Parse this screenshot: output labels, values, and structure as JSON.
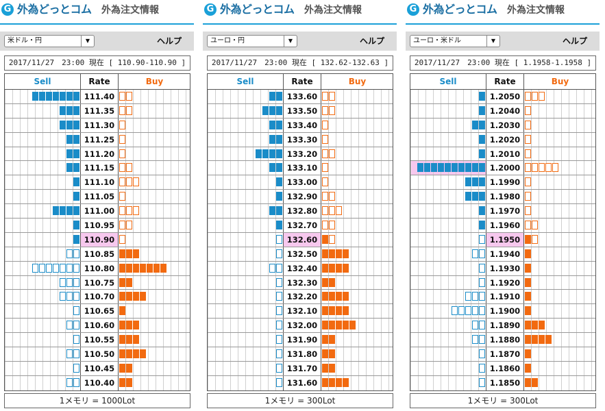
{
  "brand": {
    "name": "外為どっとコム",
    "sub": "外為注文情報",
    "logo_letter": "G"
  },
  "help_label": "ヘルプ",
  "headers": {
    "sell": "Sell",
    "rate": "Rate",
    "buy": "Buy"
  },
  "colors": {
    "sell": "#1a8cc8",
    "buy": "#f26a10",
    "highlight": "#f7c8ee"
  },
  "panels": [
    {
      "pair": "米ドル・円",
      "status": "2017/11/27　23:00 現在 [ 110.90-110.90 ]",
      "footer": "1メモリ = 1000Lot",
      "rows": [
        {
          "rate": "111.40",
          "sell": 7,
          "buy": 2,
          "sell_style": "solid",
          "buy_style": "out"
        },
        {
          "rate": "111.35",
          "sell": 3,
          "buy": 2,
          "sell_style": "solid",
          "buy_style": "out"
        },
        {
          "rate": "111.30",
          "sell": 3,
          "buy": 1,
          "sell_style": "solid",
          "buy_style": "out"
        },
        {
          "rate": "111.25",
          "sell": 2,
          "buy": 1,
          "sell_style": "solid",
          "buy_style": "out"
        },
        {
          "rate": "111.20",
          "sell": 2,
          "buy": 1,
          "sell_style": "solid",
          "buy_style": "out"
        },
        {
          "rate": "111.15",
          "sell": 2,
          "buy": 2,
          "sell_style": "solid",
          "buy_style": "out"
        },
        {
          "rate": "111.10",
          "sell": 1,
          "buy": 3,
          "sell_style": "solid",
          "buy_style": "out"
        },
        {
          "rate": "111.05",
          "sell": 1,
          "buy": 1,
          "sell_style": "solid",
          "buy_style": "out"
        },
        {
          "rate": "111.00",
          "sell": 4,
          "buy": 3,
          "sell_style": "solid",
          "buy_style": "out"
        },
        {
          "rate": "110.95",
          "sell": 1,
          "buy": 2,
          "sell_style": "solid",
          "buy_style": "out"
        },
        {
          "rate": "110.90",
          "sell": 1,
          "buy": 1,
          "sell_style": "solid",
          "buy_style": "out",
          "current": true
        },
        {
          "rate": "110.85",
          "sell": 2,
          "buy": 3,
          "sell_style": "out",
          "buy_style": "solid"
        },
        {
          "rate": "110.80",
          "sell": 7,
          "buy": 7,
          "sell_style": "out",
          "buy_style": "solid"
        },
        {
          "rate": "110.75",
          "sell": 3,
          "buy": 2,
          "sell_style": "out",
          "buy_style": "solid"
        },
        {
          "rate": "110.70",
          "sell": 3,
          "buy": 4,
          "sell_style": "out",
          "buy_style": "solid"
        },
        {
          "rate": "110.65",
          "sell": 1,
          "buy": 1,
          "sell_style": "out",
          "buy_style": "solid"
        },
        {
          "rate": "110.60",
          "sell": 2,
          "buy": 3,
          "sell_style": "out",
          "buy_style": "solid"
        },
        {
          "rate": "110.55",
          "sell": 1,
          "buy": 3,
          "sell_style": "out",
          "buy_style": "solid"
        },
        {
          "rate": "110.50",
          "sell": 2,
          "buy": 4,
          "sell_style": "out",
          "buy_style": "solid"
        },
        {
          "rate": "110.45",
          "sell": 1,
          "buy": 2,
          "sell_style": "out",
          "buy_style": "solid"
        },
        {
          "rate": "110.40",
          "sell": 2,
          "buy": 2,
          "sell_style": "out",
          "buy_style": "solid"
        }
      ]
    },
    {
      "pair": "ユーロ・円",
      "status": "2017/11/27　23:00 現在 [ 132.62-132.63 ]",
      "footer": "1メモリ = 300Lot",
      "rows": [
        {
          "rate": "133.60",
          "sell": 2,
          "buy": 2,
          "sell_style": "solid",
          "buy_style": "out"
        },
        {
          "rate": "133.50",
          "sell": 3,
          "buy": 2,
          "sell_style": "solid",
          "buy_style": "out"
        },
        {
          "rate": "133.40",
          "sell": 2,
          "buy": 1,
          "sell_style": "solid",
          "buy_style": "out"
        },
        {
          "rate": "133.30",
          "sell": 2,
          "buy": 1,
          "sell_style": "solid",
          "buy_style": "out"
        },
        {
          "rate": "133.20",
          "sell": 4,
          "buy": 2,
          "sell_style": "solid",
          "buy_style": "out"
        },
        {
          "rate": "133.10",
          "sell": 2,
          "buy": 1,
          "sell_style": "solid",
          "buy_style": "out"
        },
        {
          "rate": "133.00",
          "sell": 1,
          "buy": 1,
          "sell_style": "solid",
          "buy_style": "out"
        },
        {
          "rate": "132.90",
          "sell": 1,
          "buy": 2,
          "sell_style": "solid",
          "buy_style": "out"
        },
        {
          "rate": "132.80",
          "sell": 2,
          "buy": 3,
          "sell_style": "solid",
          "buy_style": "out"
        },
        {
          "rate": "132.70",
          "sell": 1,
          "buy": 2,
          "sell_style": "solid",
          "buy_style": "out"
        },
        {
          "rate": "132.60",
          "sell": 1,
          "buy": 2,
          "sell_style": "out",
          "buy_style": "mixed",
          "current": true
        },
        {
          "rate": "132.50",
          "sell": 1,
          "buy": 4,
          "sell_style": "out",
          "buy_style": "solid"
        },
        {
          "rate": "132.40",
          "sell": 2,
          "buy": 4,
          "sell_style": "out",
          "buy_style": "solid"
        },
        {
          "rate": "132.30",
          "sell": 1,
          "buy": 2,
          "sell_style": "out",
          "buy_style": "solid"
        },
        {
          "rate": "132.20",
          "sell": 1,
          "buy": 4,
          "sell_style": "out",
          "buy_style": "solid"
        },
        {
          "rate": "132.10",
          "sell": 1,
          "buy": 4,
          "sell_style": "out",
          "buy_style": "solid"
        },
        {
          "rate": "132.00",
          "sell": 1,
          "buy": 5,
          "sell_style": "out",
          "buy_style": "solid"
        },
        {
          "rate": "131.90",
          "sell": 1,
          "buy": 2,
          "sell_style": "out",
          "buy_style": "solid"
        },
        {
          "rate": "131.80",
          "sell": 1,
          "buy": 2,
          "sell_style": "out",
          "buy_style": "solid"
        },
        {
          "rate": "131.70",
          "sell": 1,
          "buy": 2,
          "sell_style": "out",
          "buy_style": "solid"
        },
        {
          "rate": "131.60",
          "sell": 1,
          "buy": 4,
          "sell_style": "out",
          "buy_style": "solid"
        }
      ]
    },
    {
      "pair": "ユーロ・米ドル",
      "status": "2017/11/27　23:00 現在 [ 1.1958-1.1958 ]",
      "footer": "1メモリ = 300Lot",
      "rows": [
        {
          "rate": "1.2050",
          "sell": 1,
          "buy": 3,
          "sell_style": "solid",
          "buy_style": "out"
        },
        {
          "rate": "1.2040",
          "sell": 1,
          "buy": 1,
          "sell_style": "solid",
          "buy_style": "out"
        },
        {
          "rate": "1.2030",
          "sell": 2,
          "buy": 1,
          "sell_style": "solid",
          "buy_style": "out"
        },
        {
          "rate": "1.2020",
          "sell": 1,
          "buy": 1,
          "sell_style": "solid",
          "buy_style": "out"
        },
        {
          "rate": "1.2010",
          "sell": 1,
          "buy": 1,
          "sell_style": "solid",
          "buy_style": "out"
        },
        {
          "rate": "1.2000",
          "sell": 10,
          "buy": 5,
          "sell_style": "solid",
          "buy_style": "out",
          "highlight_sell": true
        },
        {
          "rate": "1.1990",
          "sell": 3,
          "buy": 1,
          "sell_style": "solid",
          "buy_style": "out"
        },
        {
          "rate": "1.1980",
          "sell": 3,
          "buy": 1,
          "sell_style": "solid",
          "buy_style": "out"
        },
        {
          "rate": "1.1970",
          "sell": 1,
          "buy": 1,
          "sell_style": "solid",
          "buy_style": "out"
        },
        {
          "rate": "1.1960",
          "sell": 1,
          "buy": 2,
          "sell_style": "solid",
          "buy_style": "out"
        },
        {
          "rate": "1.1950",
          "sell": 1,
          "buy": 2,
          "sell_style": "out",
          "buy_style": "mixed",
          "current": true
        },
        {
          "rate": "1.1940",
          "sell": 2,
          "buy": 1,
          "sell_style": "out",
          "buy_style": "solid"
        },
        {
          "rate": "1.1930",
          "sell": 1,
          "buy": 1,
          "sell_style": "out",
          "buy_style": "solid"
        },
        {
          "rate": "1.1920",
          "sell": 1,
          "buy": 1,
          "sell_style": "out",
          "buy_style": "solid"
        },
        {
          "rate": "1.1910",
          "sell": 3,
          "buy": 1,
          "sell_style": "out",
          "buy_style": "solid"
        },
        {
          "rate": "1.1900",
          "sell": 5,
          "buy": 1,
          "sell_style": "out",
          "buy_style": "solid"
        },
        {
          "rate": "1.1890",
          "sell": 2,
          "buy": 3,
          "sell_style": "out",
          "buy_style": "solid"
        },
        {
          "rate": "1.1880",
          "sell": 2,
          "buy": 4,
          "sell_style": "out",
          "buy_style": "solid"
        },
        {
          "rate": "1.1870",
          "sell": 1,
          "buy": 1,
          "sell_style": "out",
          "buy_style": "solid"
        },
        {
          "rate": "1.1860",
          "sell": 1,
          "buy": 1,
          "sell_style": "out",
          "buy_style": "solid"
        },
        {
          "rate": "1.1850",
          "sell": 1,
          "buy": 2,
          "sell_style": "out",
          "buy_style": "solid"
        }
      ]
    }
  ]
}
